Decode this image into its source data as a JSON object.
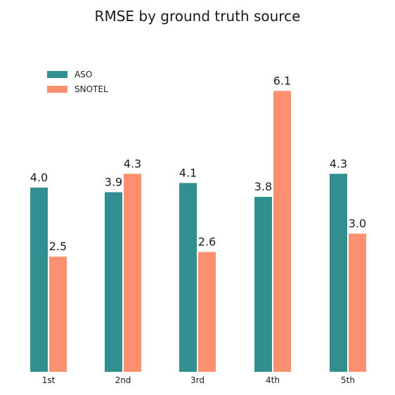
{
  "chart_data": {
    "type": "bar",
    "title": "RMSE by ground truth source",
    "xlabel": "",
    "ylabel": "",
    "categories": [
      "1st",
      "2nd",
      "3rd",
      "4th",
      "5th"
    ],
    "series": [
      {
        "name": "ASO",
        "values": [
          4.0,
          3.9,
          4.1,
          3.8,
          4.3
        ],
        "labels": [
          "4.0",
          "3.9",
          "4.1",
          "3.8",
          "4.3"
        ],
        "color": "#31908f"
      },
      {
        "name": "SNOTEL",
        "values": [
          2.5,
          4.3,
          2.6,
          6.1,
          3.0
        ],
        "labels": [
          "2.5",
          "4.3",
          "2.6",
          "6.1",
          "3.0"
        ],
        "color": "#fa9070"
      }
    ],
    "ylim": [
      0,
      6.7
    ],
    "grid": false,
    "legend": "top-left",
    "y_axis_visible": false
  }
}
